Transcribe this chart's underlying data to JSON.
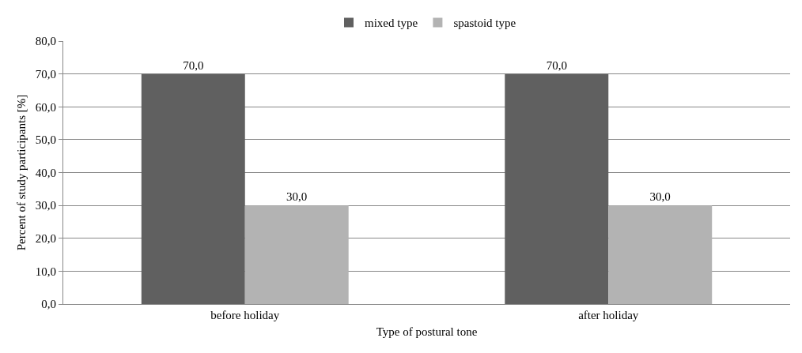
{
  "chart_data": {
    "type": "bar",
    "xlabel": "Type of postural tone",
    "ylabel": "Percent of study participants [%]",
    "categories": [
      "before holiday",
      "after holiday"
    ],
    "series": [
      {
        "name": "mixed type",
        "color": "#606060",
        "values": [
          70,
          70
        ],
        "value_labels": [
          "70,0",
          "70,0"
        ]
      },
      {
        "name": "spastoid type",
        "color": "#b3b3b3",
        "values": [
          30,
          30
        ],
        "value_labels": [
          "30,0",
          "30,0"
        ]
      }
    ],
    "ylim": [
      0,
      80
    ],
    "yticks": [
      {
        "value": 0,
        "label": "0,0"
      },
      {
        "value": 10,
        "label": "10,0"
      },
      {
        "value": 20,
        "label": "20,0"
      },
      {
        "value": 30,
        "label": "30,0"
      },
      {
        "value": 40,
        "label": "40,0"
      },
      {
        "value": 50,
        "label": "50,0"
      },
      {
        "value": 60,
        "label": "60,0"
      },
      {
        "value": 70,
        "label": "70,0"
      },
      {
        "value": 80,
        "label": "80,0"
      }
    ],
    "grid": "y",
    "legend": "top"
  }
}
